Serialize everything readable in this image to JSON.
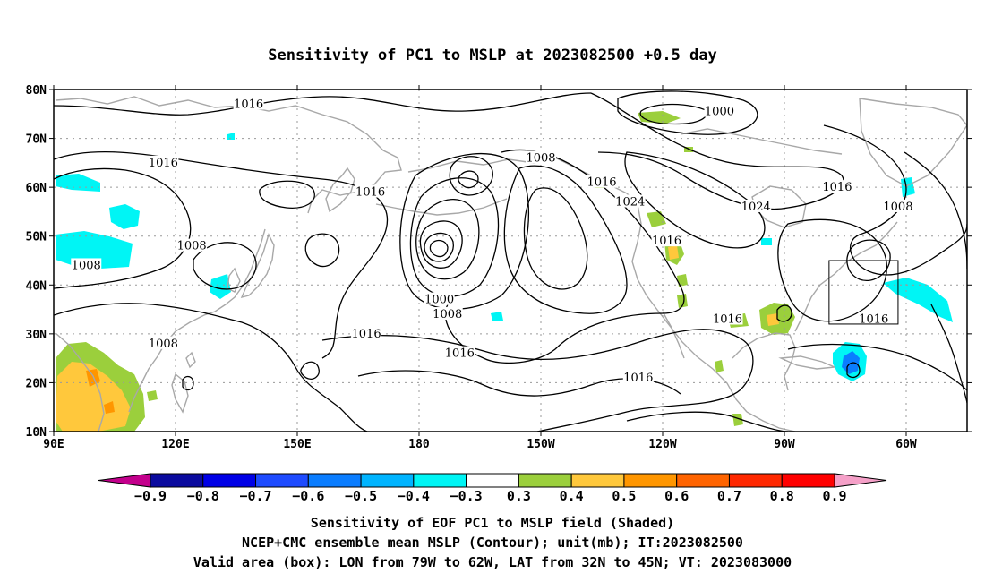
{
  "title": "Sensitivity of PC1 to MSLP at 2023082500 +0.5 day",
  "map": {
    "lat_ticks": [
      "80N",
      "70N",
      "60N",
      "50N",
      "40N",
      "30N",
      "20N",
      "10N"
    ],
    "lon_ticks": [
      "90E",
      "120E",
      "150E",
      "180",
      "150W",
      "120W",
      "90W",
      "60W"
    ],
    "extent": {
      "lon_west": "90E",
      "lon_east": "45W",
      "lat_south": "10N",
      "lat_north": "80N"
    },
    "contour_color": "#000000",
    "coastline_color": "#a8a8a8",
    "gridline_color": "#9a9a9a",
    "contour_labels": [
      {
        "value": "1016",
        "lon": 138,
        "lat": 77
      },
      {
        "value": "1000",
        "lon": 254,
        "lat": 75.5
      },
      {
        "value": "1008",
        "lon": 210,
        "lat": 66
      },
      {
        "value": "1016",
        "lon": 117,
        "lat": 65
      },
      {
        "value": "1016",
        "lon": 168,
        "lat": 59
      },
      {
        "value": "1016",
        "lon": 225,
        "lat": 61
      },
      {
        "value": "1024",
        "lon": 232,
        "lat": 57
      },
      {
        "value": "1024",
        "lon": 263,
        "lat": 56
      },
      {
        "value": "1016",
        "lon": 283,
        "lat": 60
      },
      {
        "value": "1008",
        "lon": 298,
        "lat": 56
      },
      {
        "value": "1008",
        "lon": 124,
        "lat": 48
      },
      {
        "value": "1016",
        "lon": 241,
        "lat": 49
      },
      {
        "value": "1008",
        "lon": 98,
        "lat": 44
      },
      {
        "value": "1000",
        "lon": 185,
        "lat": 37
      },
      {
        "value": "1008",
        "lon": 187,
        "lat": 34
      },
      {
        "value": "1016",
        "lon": 256,
        "lat": 33
      },
      {
        "value": "1016",
        "lon": 292,
        "lat": 33
      },
      {
        "value": "1016",
        "lon": 167,
        "lat": 30
      },
      {
        "value": "1008",
        "lon": 117,
        "lat": 28
      },
      {
        "value": "1016",
        "lon": 190,
        "lat": 26
      },
      {
        "value": "1016",
        "lon": 234,
        "lat": 21
      }
    ],
    "valid_box": {
      "lon_west": "79W",
      "lon_east": "62W",
      "lat_south": "32N",
      "lat_north": "45N"
    }
  },
  "colorbar": {
    "levels": [
      "-0.9",
      "-0.8",
      "-0.7",
      "-0.6",
      "-0.5",
      "-0.4",
      "-0.3",
      "0.3",
      "0.4",
      "0.5",
      "0.6",
      "0.7",
      "0.8",
      "0.9"
    ],
    "colors": [
      "#c3008c",
      "#0a0a9e",
      "#0000e6",
      "#1e4bff",
      "#0a7dff",
      "#00b4ff",
      "#00f5f5",
      "#ffffff",
      "#9bcf3c",
      "#ffc83c",
      "#ff9600",
      "#ff6400",
      "#ff2800",
      "#ff0000",
      "#f5a0c8"
    ]
  },
  "captions": [
    "Sensitivity of EOF PC1 to MSLP field (Shaded)",
    "NCEP+CMC ensemble mean MSLP (Contour); unit(mb); IT:2023082500",
    "Valid area (box): LON from 79W to 62W, LAT from 32N to 45N; VT: 2023083000"
  ]
}
